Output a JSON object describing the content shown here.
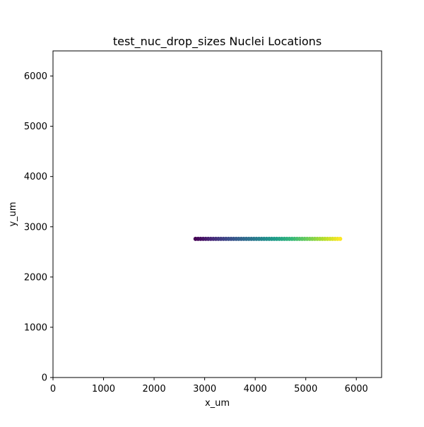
{
  "chart_data": {
    "type": "scatter",
    "title": "test_nuc_drop_sizes Nuclei Locations",
    "xlabel": "x_um",
    "ylabel": "y_um",
    "xlim": [
      0,
      6500
    ],
    "ylim": [
      0,
      6500
    ],
    "xticks": [
      0,
      1000,
      2000,
      3000,
      4000,
      5000,
      6000
    ],
    "yticks": [
      0,
      1000,
      2000,
      3000,
      4000,
      5000,
      6000
    ],
    "grid": false,
    "legend": "none",
    "colormap": "viridis",
    "color_by": "x",
    "marker_color_range": [
      "#440154",
      "#fde725"
    ],
    "series": [
      {
        "x_range": [
          2820,
          5680
        ],
        "y": 2760,
        "count": 58
      }
    ]
  }
}
